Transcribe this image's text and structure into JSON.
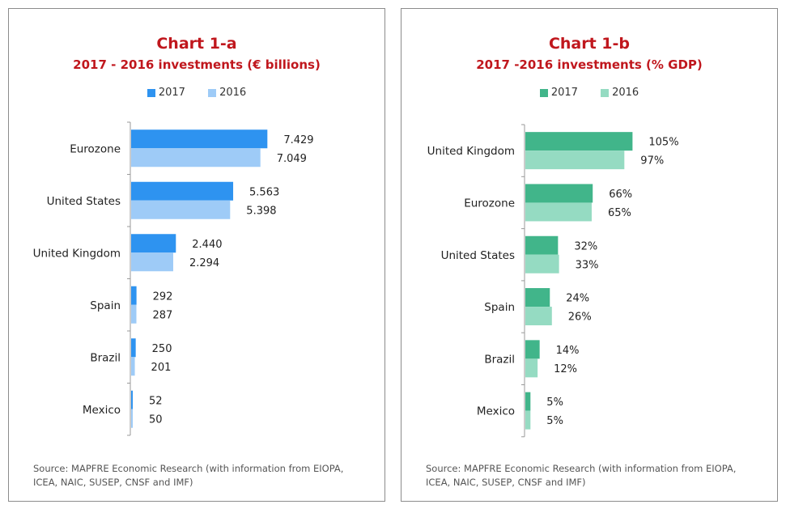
{
  "chart_data": [
    {
      "type": "bar",
      "orientation": "horizontal",
      "title": "Chart 1-a",
      "subtitle": "2017 - 2016 investments (€ billions)",
      "categories": [
        "Eurozone",
        "United States",
        "United Kingdom",
        "Spain",
        "Brazil",
        "Mexico"
      ],
      "series": [
        {
          "name": "2017",
          "values": [
            7429,
            5563,
            2440,
            292,
            250,
            52
          ],
          "labels": [
            "7.429",
            "5.563",
            "2.440",
            "292",
            "250",
            "52"
          ],
          "color": "#2e93f0"
        },
        {
          "name": "2016",
          "values": [
            7049,
            5398,
            2294,
            287,
            201,
            50
          ],
          "labels": [
            "7.049",
            "5.398",
            "2.294",
            "287",
            "201",
            "50"
          ],
          "color": "#9ecbf7"
        }
      ],
      "xlim": [
        0,
        12800
      ],
      "source": "Source: MAPFRE Economic Research (with information from EIOPA, ICEA, NAIC, SUSEP, CNSF and IMF)"
    },
    {
      "type": "bar",
      "orientation": "horizontal",
      "title": "Chart 1-b",
      "subtitle": "2017 -2016 investments (% GDP)",
      "categories": [
        "United Kingdom",
        "Eurozone",
        "United States",
        "Spain",
        "Brazil",
        "Mexico"
      ],
      "series": [
        {
          "name": "2017",
          "values": [
            105,
            66,
            32,
            24,
            14,
            5
          ],
          "labels": [
            "105%",
            "66%",
            "32%",
            "24%",
            "14%",
            "5%"
          ],
          "color": "#41b58a"
        },
        {
          "name": "2016",
          "values": [
            97,
            65,
            33,
            26,
            12,
            5
          ],
          "labels": [
            "97%",
            "65%",
            "33%",
            "26%",
            "12%",
            "5%"
          ],
          "color": "#95dbc2"
        }
      ],
      "xlim": [
        0,
        230
      ],
      "source": "Source: MAPFRE Economic Research (with information from EIOPA, ICEA, NAIC, SUSEP, CNSF and IMF)"
    }
  ]
}
